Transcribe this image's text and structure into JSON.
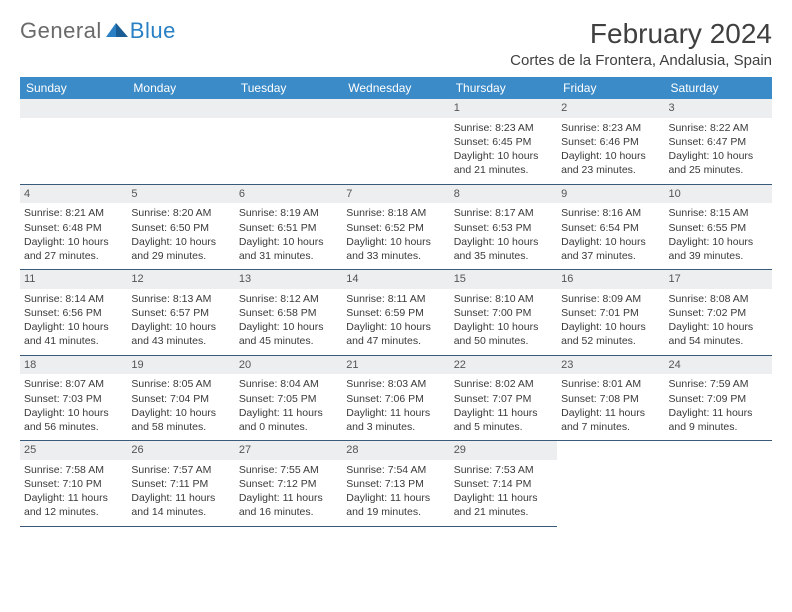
{
  "logo": {
    "general": "General",
    "blue": "Blue"
  },
  "title": "February 2024",
  "location": "Cortes de la Frontera, Andalusia, Spain",
  "colors": {
    "header_bg": "#3b8bc8",
    "header_fg": "#ffffff",
    "daynum_bg": "#eceef0",
    "rule": "#3a5a7a",
    "text": "#333333",
    "logo_gray": "#6a6a6a",
    "logo_blue": "#2a80c4"
  },
  "weekdays": [
    "Sunday",
    "Monday",
    "Tuesday",
    "Wednesday",
    "Thursday",
    "Friday",
    "Saturday"
  ],
  "weeks": [
    [
      null,
      null,
      null,
      null,
      {
        "n": "1",
        "sr": "Sunrise: 8:23 AM",
        "ss": "Sunset: 6:45 PM",
        "d1": "Daylight: 10 hours",
        "d2": "and 21 minutes."
      },
      {
        "n": "2",
        "sr": "Sunrise: 8:23 AM",
        "ss": "Sunset: 6:46 PM",
        "d1": "Daylight: 10 hours",
        "d2": "and 23 minutes."
      },
      {
        "n": "3",
        "sr": "Sunrise: 8:22 AM",
        "ss": "Sunset: 6:47 PM",
        "d1": "Daylight: 10 hours",
        "d2": "and 25 minutes."
      }
    ],
    [
      {
        "n": "4",
        "sr": "Sunrise: 8:21 AM",
        "ss": "Sunset: 6:48 PM",
        "d1": "Daylight: 10 hours",
        "d2": "and 27 minutes."
      },
      {
        "n": "5",
        "sr": "Sunrise: 8:20 AM",
        "ss": "Sunset: 6:50 PM",
        "d1": "Daylight: 10 hours",
        "d2": "and 29 minutes."
      },
      {
        "n": "6",
        "sr": "Sunrise: 8:19 AM",
        "ss": "Sunset: 6:51 PM",
        "d1": "Daylight: 10 hours",
        "d2": "and 31 minutes."
      },
      {
        "n": "7",
        "sr": "Sunrise: 8:18 AM",
        "ss": "Sunset: 6:52 PM",
        "d1": "Daylight: 10 hours",
        "d2": "and 33 minutes."
      },
      {
        "n": "8",
        "sr": "Sunrise: 8:17 AM",
        "ss": "Sunset: 6:53 PM",
        "d1": "Daylight: 10 hours",
        "d2": "and 35 minutes."
      },
      {
        "n": "9",
        "sr": "Sunrise: 8:16 AM",
        "ss": "Sunset: 6:54 PM",
        "d1": "Daylight: 10 hours",
        "d2": "and 37 minutes."
      },
      {
        "n": "10",
        "sr": "Sunrise: 8:15 AM",
        "ss": "Sunset: 6:55 PM",
        "d1": "Daylight: 10 hours",
        "d2": "and 39 minutes."
      }
    ],
    [
      {
        "n": "11",
        "sr": "Sunrise: 8:14 AM",
        "ss": "Sunset: 6:56 PM",
        "d1": "Daylight: 10 hours",
        "d2": "and 41 minutes."
      },
      {
        "n": "12",
        "sr": "Sunrise: 8:13 AM",
        "ss": "Sunset: 6:57 PM",
        "d1": "Daylight: 10 hours",
        "d2": "and 43 minutes."
      },
      {
        "n": "13",
        "sr": "Sunrise: 8:12 AM",
        "ss": "Sunset: 6:58 PM",
        "d1": "Daylight: 10 hours",
        "d2": "and 45 minutes."
      },
      {
        "n": "14",
        "sr": "Sunrise: 8:11 AM",
        "ss": "Sunset: 6:59 PM",
        "d1": "Daylight: 10 hours",
        "d2": "and 47 minutes."
      },
      {
        "n": "15",
        "sr": "Sunrise: 8:10 AM",
        "ss": "Sunset: 7:00 PM",
        "d1": "Daylight: 10 hours",
        "d2": "and 50 minutes."
      },
      {
        "n": "16",
        "sr": "Sunrise: 8:09 AM",
        "ss": "Sunset: 7:01 PM",
        "d1": "Daylight: 10 hours",
        "d2": "and 52 minutes."
      },
      {
        "n": "17",
        "sr": "Sunrise: 8:08 AM",
        "ss": "Sunset: 7:02 PM",
        "d1": "Daylight: 10 hours",
        "d2": "and 54 minutes."
      }
    ],
    [
      {
        "n": "18",
        "sr": "Sunrise: 8:07 AM",
        "ss": "Sunset: 7:03 PM",
        "d1": "Daylight: 10 hours",
        "d2": "and 56 minutes."
      },
      {
        "n": "19",
        "sr": "Sunrise: 8:05 AM",
        "ss": "Sunset: 7:04 PM",
        "d1": "Daylight: 10 hours",
        "d2": "and 58 minutes."
      },
      {
        "n": "20",
        "sr": "Sunrise: 8:04 AM",
        "ss": "Sunset: 7:05 PM",
        "d1": "Daylight: 11 hours",
        "d2": "and 0 minutes."
      },
      {
        "n": "21",
        "sr": "Sunrise: 8:03 AM",
        "ss": "Sunset: 7:06 PM",
        "d1": "Daylight: 11 hours",
        "d2": "and 3 minutes."
      },
      {
        "n": "22",
        "sr": "Sunrise: 8:02 AM",
        "ss": "Sunset: 7:07 PM",
        "d1": "Daylight: 11 hours",
        "d2": "and 5 minutes."
      },
      {
        "n": "23",
        "sr": "Sunrise: 8:01 AM",
        "ss": "Sunset: 7:08 PM",
        "d1": "Daylight: 11 hours",
        "d2": "and 7 minutes."
      },
      {
        "n": "24",
        "sr": "Sunrise: 7:59 AM",
        "ss": "Sunset: 7:09 PM",
        "d1": "Daylight: 11 hours",
        "d2": "and 9 minutes."
      }
    ],
    [
      {
        "n": "25",
        "sr": "Sunrise: 7:58 AM",
        "ss": "Sunset: 7:10 PM",
        "d1": "Daylight: 11 hours",
        "d2": "and 12 minutes."
      },
      {
        "n": "26",
        "sr": "Sunrise: 7:57 AM",
        "ss": "Sunset: 7:11 PM",
        "d1": "Daylight: 11 hours",
        "d2": "and 14 minutes."
      },
      {
        "n": "27",
        "sr": "Sunrise: 7:55 AM",
        "ss": "Sunset: 7:12 PM",
        "d1": "Daylight: 11 hours",
        "d2": "and 16 minutes."
      },
      {
        "n": "28",
        "sr": "Sunrise: 7:54 AM",
        "ss": "Sunset: 7:13 PM",
        "d1": "Daylight: 11 hours",
        "d2": "and 19 minutes."
      },
      {
        "n": "29",
        "sr": "Sunrise: 7:53 AM",
        "ss": "Sunset: 7:14 PM",
        "d1": "Daylight: 11 hours",
        "d2": "and 21 minutes."
      },
      null,
      null
    ]
  ]
}
